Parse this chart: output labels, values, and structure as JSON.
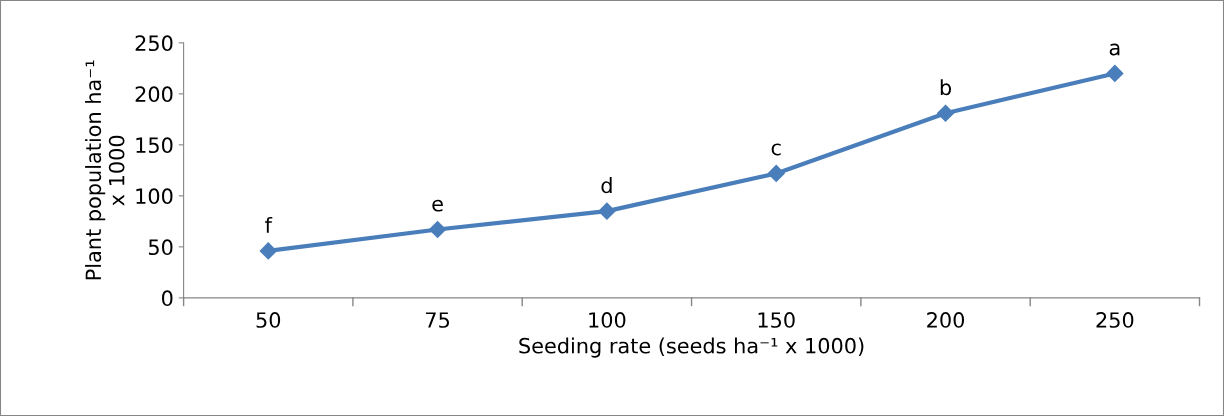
{
  "chart_data": {
    "type": "line",
    "categories": [
      "50",
      "75",
      "100",
      "150",
      "200",
      "250"
    ],
    "series": [
      {
        "color": "#4a7ebb",
        "values": [
          46,
          67,
          85,
          122,
          181,
          220
        ]
      }
    ],
    "xlabel": "Seeding rate (seeds ha⁻¹ x 1000)",
    "ylabel": "Plant population ha⁻¹\nx 1000",
    "ylim": [
      0,
      250
    ],
    "yticks": [
      0,
      50,
      100,
      150,
      200,
      250
    ],
    "marker": "diamond",
    "line_style": "solid",
    "grid": false,
    "legend": false,
    "annotations": [
      {
        "text": "f",
        "x": "50",
        "y": 46
      },
      {
        "text": "e",
        "x": "75",
        "y": 67
      },
      {
        "text": "d",
        "x": "100",
        "y": 85
      },
      {
        "text": "c",
        "x": "150",
        "y": 122
      },
      {
        "text": "b",
        "x": "200",
        "y": 181
      },
      {
        "text": "a",
        "x": "250",
        "y": 220
      }
    ]
  }
}
